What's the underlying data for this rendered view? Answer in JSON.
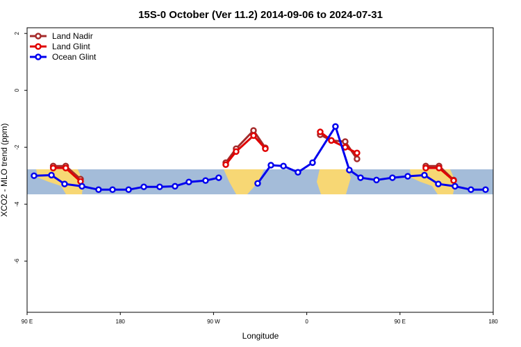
{
  "chart_data": {
    "type": "line",
    "title": "15S-0 October (Ver 11.2)   2014-09-06 to 2024-07-31",
    "x_label": "Longitude",
    "y_label": "XCO2 - MLO trend (ppm)",
    "xlim": [
      90,
      540
    ],
    "ylim": [
      -7.8,
      2.2
    ],
    "xticks": [
      {
        "value": 90,
        "label": "90 E"
      },
      {
        "value": 180,
        "label": "180"
      },
      {
        "value": 270,
        "label": "90 W"
      },
      {
        "value": 360,
        "label": "0"
      },
      {
        "value": 450,
        "label": "90 E"
      },
      {
        "value": 540,
        "label": "180"
      }
    ],
    "yticks": [
      2,
      0,
      -2,
      -4,
      -6
    ],
    "legend": "top-left",
    "series": [
      {
        "name": "Land Nadir",
        "color": "#a52a2a",
        "x": [
          115.2,
          127.3,
          141.6,
          210,
          281.8,
          291.8,
          308.6,
          320,
          345,
          373,
          383.7,
          397.1,
          408.5,
          440,
          474.9,
          487.7,
          501.8
        ],
        "values": [
          -2.66,
          -2.66,
          -3.12,
          null,
          -2.54,
          -2.05,
          -1.41,
          -2.02,
          null,
          -1.56,
          -1.76,
          -1.8,
          -2.41,
          null,
          -2.66,
          -2.66,
          -3.15
        ]
      },
      {
        "name": "Land Glint",
        "color": "#e00000",
        "x": [
          115.2,
          127.3,
          141.6,
          210,
          281.8,
          291.8,
          308.6,
          320,
          345,
          373,
          383.7,
          397.1,
          408.5,
          440,
          474.9,
          487.7,
          501.8
        ],
        "values": [
          -2.73,
          -2.73,
          -3.2,
          null,
          -2.61,
          -2.15,
          -1.59,
          -2.05,
          null,
          -1.46,
          -1.76,
          -2.0,
          -2.2,
          null,
          -2.73,
          -2.73,
          -3.17
        ]
      },
      {
        "name": "Ocean Glint",
        "color": "#0000ee",
        "x": [
          96.7,
          113.5,
          126.2,
          143,
          159,
          172.5,
          188,
          202.7,
          218,
          232.8,
          246.2,
          262.3,
          275,
          300,
          312.6,
          325.4,
          337.5,
          351.5,
          365.6,
          387.7,
          401.1,
          411.9,
          427.3,
          442.7,
          457.5,
          473.6,
          487,
          503.1,
          518.5,
          532.6
        ],
        "values": [
          -3.0,
          -2.98,
          -3.29,
          -3.37,
          -3.49,
          -3.49,
          -3.49,
          -3.39,
          -3.39,
          -3.37,
          -3.22,
          -3.17,
          -3.07,
          null,
          -3.27,
          -2.63,
          -2.66,
          -2.88,
          -2.54,
          -1.27,
          -2.8,
          -3.07,
          -3.15,
          -3.07,
          -3.02,
          -2.98,
          -3.29,
          -3.37,
          -3.49,
          -3.49
        ]
      }
    ]
  }
}
